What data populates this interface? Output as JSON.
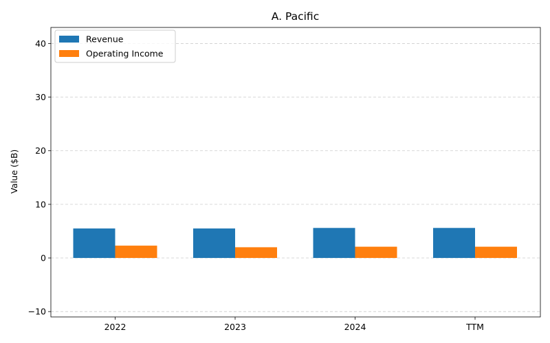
{
  "chart_data": {
    "type": "bar",
    "title": "A. Pacific",
    "xlabel": "",
    "ylabel": "Value ($B)",
    "categories": [
      "2022",
      "2023",
      "2024",
      "TTM"
    ],
    "series": [
      {
        "name": "Revenue",
        "color": "#1f77b4",
        "values": [
          5.5,
          5.5,
          5.6,
          5.6
        ]
      },
      {
        "name": "Operating Income",
        "color": "#ff7f0e",
        "values": [
          2.3,
          2.0,
          2.1,
          2.1
        ]
      }
    ],
    "ylim": [
      -11,
      43
    ],
    "yticks": [
      -10,
      0,
      10,
      20,
      30,
      40
    ],
    "grid": true,
    "legend_position": "top-left"
  }
}
